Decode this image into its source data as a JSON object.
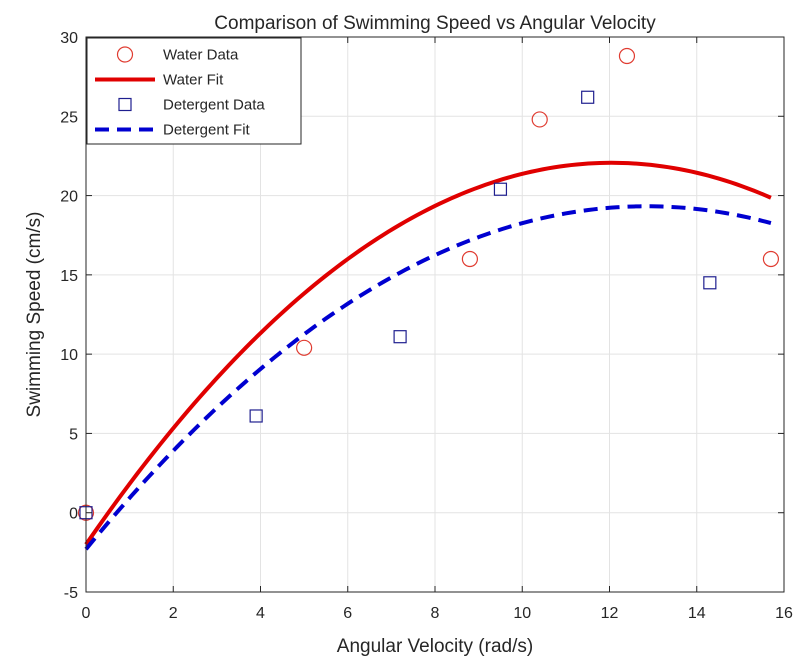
{
  "chart_data": {
    "type": "scatter",
    "title": "Comparison of Swimming Speed vs Angular Velocity",
    "xlabel": "Angular Velocity (rad/s)",
    "ylabel": "Swimming Speed (cm/s)",
    "xlim": [
      0,
      16
    ],
    "ylim": [
      -5,
      30
    ],
    "xticks": [
      0,
      2,
      4,
      6,
      8,
      10,
      12,
      14,
      16
    ],
    "yticks": [
      -5,
      0,
      5,
      10,
      15,
      20,
      25,
      30
    ],
    "xtick_labels": [
      "0",
      "2",
      "4",
      "6",
      "8",
      "10",
      "12",
      "14",
      "16"
    ],
    "ytick_labels": [
      "-5",
      "0",
      "5",
      "10",
      "15",
      "20",
      "25",
      "30"
    ],
    "grid": true,
    "legend_position": "top-left",
    "series": [
      {
        "name": "Water Data",
        "kind": "markers",
        "marker": "circle",
        "color": "#e03c31",
        "points": [
          [
            0,
            0
          ],
          [
            5.0,
            10.4
          ],
          [
            8.8,
            16.0
          ],
          [
            10.4,
            24.8
          ],
          [
            12.4,
            28.8
          ],
          [
            15.7,
            16.0
          ]
        ]
      },
      {
        "name": "Water Fit",
        "kind": "line",
        "style": "solid",
        "color": "#e00000",
        "coefficients": [
          -0.1657,
          3.994,
          -2.0
        ],
        "x_range": [
          0,
          15.7
        ]
      },
      {
        "name": "Detergent Data",
        "kind": "markers",
        "marker": "square",
        "color": "#1f1f8f",
        "points": [
          [
            0,
            0
          ],
          [
            3.9,
            6.1
          ],
          [
            7.2,
            11.1
          ],
          [
            9.5,
            20.4
          ],
          [
            11.5,
            26.2
          ],
          [
            14.3,
            14.5
          ]
        ]
      },
      {
        "name": "Detergent Fit",
        "kind": "line",
        "style": "dashed",
        "color": "#0000d0",
        "coefficients": [
          -0.1309,
          3.365,
          -2.3
        ],
        "x_range": [
          0,
          15.7
        ]
      }
    ]
  }
}
